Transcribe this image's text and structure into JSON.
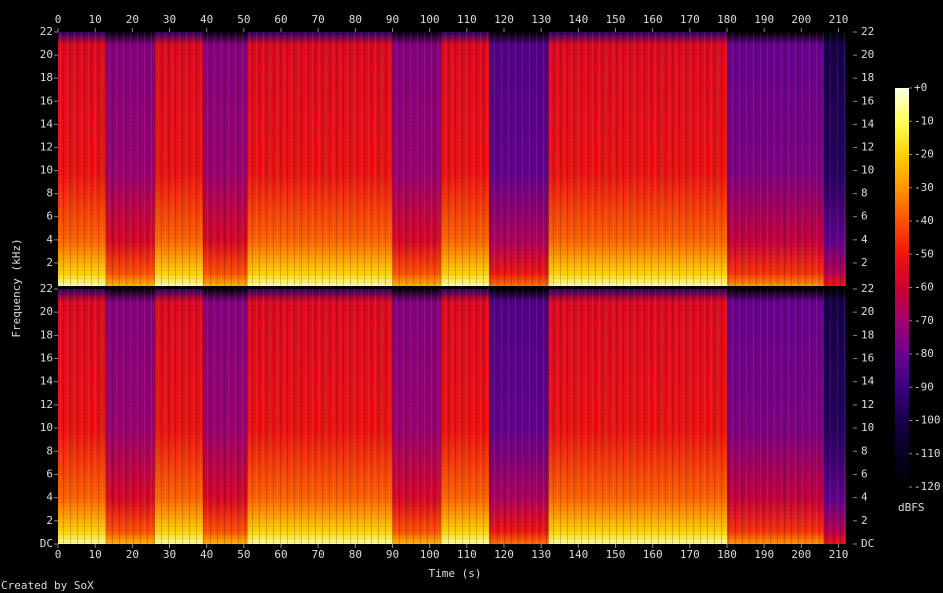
{
  "chart_data": {
    "type": "spectrogram",
    "xlabel": "Time (s)",
    "ylabel": "Frequency (kHz)",
    "footer": "Created by SoX",
    "xlim": [
      0,
      213.9
    ],
    "xticks": [
      0,
      10,
      20,
      30,
      40,
      50,
      60,
      70,
      80,
      90,
      100,
      110,
      120,
      130,
      140,
      150,
      160,
      170,
      180,
      190,
      200,
      210
    ],
    "bins": [
      0,
      13,
      26,
      39,
      51,
      65,
      90,
      103,
      116,
      132,
      180,
      206,
      212
    ],
    "channels": [
      {
        "ylim": [
          0,
          22
        ],
        "yticks": [
          2,
          4,
          6,
          8,
          10,
          12,
          14,
          16,
          18,
          20,
          22
        ],
        "values": [
          -55,
          -75,
          -55,
          -75,
          -55,
          -55,
          -75,
          -55,
          -85,
          -55,
          -80,
          -100
        ]
      },
      {
        "ylim": [
          0,
          22
        ],
        "yticks": [
          {
            "value": 0,
            "label": "DC"
          },
          2,
          4,
          6,
          8,
          10,
          12,
          14,
          16,
          18,
          20,
          22
        ],
        "values": [
          -55,
          -75,
          -55,
          -75,
          -55,
          -55,
          -75,
          -55,
          -85,
          -55,
          -80,
          -100
        ]
      }
    ],
    "colorbar": {
      "label": "dBFS",
      "ylim": [
        -120,
        0
      ],
      "ticks": [
        {
          "value": 0,
          "label": "+0"
        },
        -10,
        -20,
        -30,
        -40,
        -50,
        -60,
        -70,
        -80,
        -90,
        -100,
        -110,
        -120
      ]
    }
  }
}
